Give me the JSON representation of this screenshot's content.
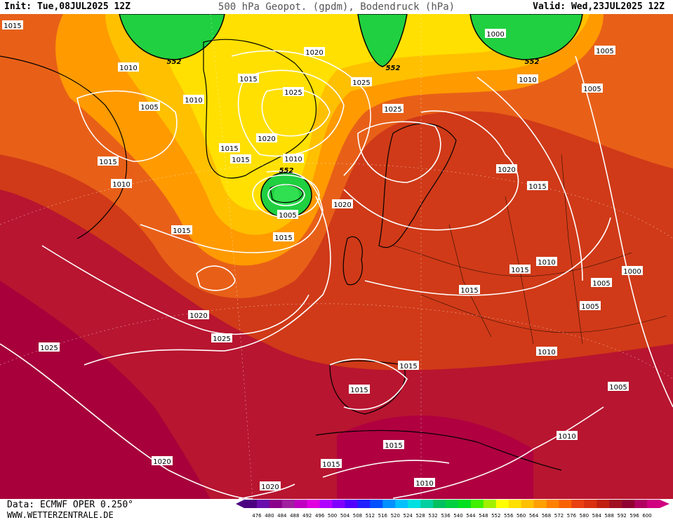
{
  "header": {
    "init": "Init: Tue,08JUL2025 12Z",
    "title": "500 hPa Geopot. (gpdm), Bodendruck (hPa)",
    "valid": "Valid: Wed,23JUL2025 12Z"
  },
  "footer": {
    "source": "Data: ECMWF OPER 0.250°",
    "site": "WWW.WETTERZENTRALE.DE"
  },
  "legend": {
    "levels": [
      "476",
      "480",
      "484",
      "488",
      "492",
      "496",
      "500",
      "504",
      "508",
      "512",
      "516",
      "520",
      "524",
      "528",
      "532",
      "536",
      "540",
      "544",
      "548",
      "552",
      "556",
      "560",
      "564",
      "568",
      "572",
      "576",
      "580",
      "584",
      "588",
      "592",
      "596",
      "600"
    ],
    "colors": [
      "#4b0082",
      "#6a0dad",
      "#8b008b",
      "#a020a0",
      "#c000c0",
      "#e000e0",
      "#b000ff",
      "#8000ff",
      "#5000ff",
      "#2020ff",
      "#0050ff",
      "#0090ff",
      "#00c0ff",
      "#00e0e0",
      "#00d0a0",
      "#00c060",
      "#00d040",
      "#00e020",
      "#40f000",
      "#a0f000",
      "#ffff00",
      "#ffe000",
      "#ffc000",
      "#ffa000",
      "#ff8000",
      "#f86000",
      "#e84010",
      "#d83010",
      "#c02010",
      "#a01020",
      "#900030",
      "#b00060",
      "#d00080"
    ]
  },
  "isobar_labels": [
    {
      "text": "1015"
    },
    {
      "text": "1010"
    },
    {
      "text": "1005"
    },
    {
      "text": "1010"
    },
    {
      "text": "1015"
    },
    {
      "text": "1020"
    },
    {
      "text": "1025"
    },
    {
      "text": "1020"
    },
    {
      "text": "1015"
    },
    {
      "text": "1015"
    },
    {
      "text": "1010"
    },
    {
      "text": "1015"
    },
    {
      "text": "1010"
    },
    {
      "text": "1005"
    },
    {
      "text": "1015"
    },
    {
      "text": "1020"
    },
    {
      "text": "1015"
    },
    {
      "text": "1020"
    },
    {
      "text": "1025"
    },
    {
      "text": "1025"
    },
    {
      "text": "1020"
    },
    {
      "text": "1015"
    },
    {
      "text": "1015"
    },
    {
      "text": "1015"
    },
    {
      "text": "1015"
    },
    {
      "text": "1025"
    },
    {
      "text": "1020"
    },
    {
      "text": "1025"
    },
    {
      "text": "1015"
    },
    {
      "text": "1010"
    },
    {
      "text": "1005"
    },
    {
      "text": "1000"
    },
    {
      "text": "1005"
    },
    {
      "text": "1010"
    },
    {
      "text": "1000"
    },
    {
      "text": "1005"
    },
    {
      "text": "1005"
    },
    {
      "text": "1010"
    },
    {
      "text": "1005"
    },
    {
      "text": "1010"
    },
    {
      "text": "1020"
    },
    {
      "text": "1015"
    },
    {
      "text": "1010"
    },
    {
      "text": "1015"
    }
  ],
  "geopot_labels": [
    {
      "text": "552"
    },
    {
      "text": "552"
    },
    {
      "text": "552"
    },
    {
      "text": "552"
    }
  ]
}
